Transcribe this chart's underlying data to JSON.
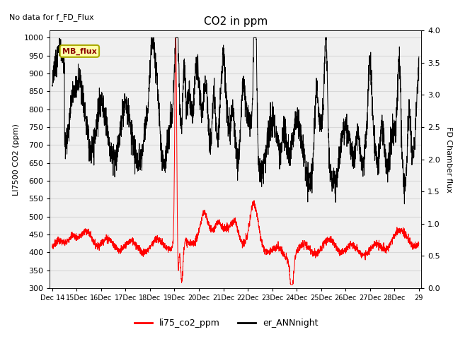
{
  "title": "CO2 in ppm",
  "subtitle": "No data for f_FD_Flux",
  "ylabel_left": "LI7500 CO2 (ppm)",
  "ylabel_right": "FD Chamber flux",
  "ylim_left": [
    300,
    1020
  ],
  "ylim_right": [
    0.0,
    4.0
  ],
  "yticks_left": [
    300,
    350,
    400,
    450,
    500,
    550,
    600,
    650,
    700,
    750,
    800,
    850,
    900,
    950,
    1000
  ],
  "yticks_right": [
    0.0,
    0.5,
    1.0,
    1.5,
    2.0,
    2.5,
    3.0,
    3.5,
    4.0
  ],
  "legend_label_red": "li75_co2_ppm",
  "legend_label_black": "er_ANNnight",
  "mb_flux_label": "MB_flux",
  "line_color_red": "#ff0000",
  "line_color_black": "#000000",
  "background_color": "#ffffff",
  "grid_color": "#d8d8d8",
  "xtick_labels": [
    "Dec 14",
    "15Dec",
    "16Dec",
    "17Dec",
    "18Dec",
    "19Dec",
    "20Dec",
    "21Dec",
    "22Dec",
    "23Dec",
    "24Dec",
    "25Dec",
    "26Dec",
    "27Dec",
    "28Dec",
    "29"
  ],
  "figsize": [
    6.4,
    4.8
  ],
  "dpi": 100
}
